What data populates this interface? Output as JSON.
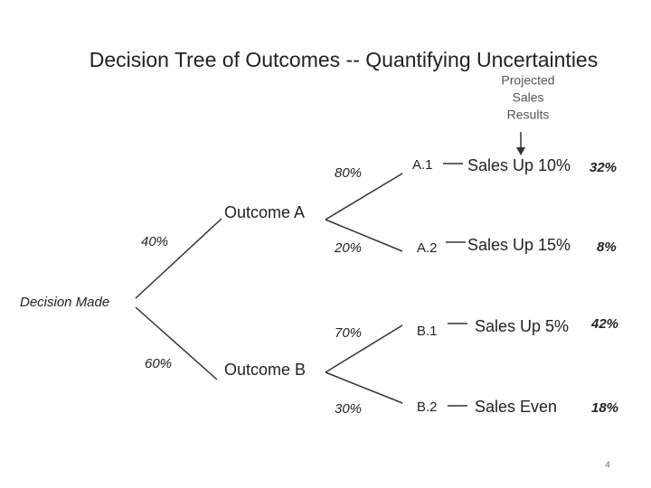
{
  "title": "Decision Tree of Outcomes -- Quantifying Uncertainties",
  "column_header": [
    "Projected",
    "Sales",
    "Results"
  ],
  "root": "Decision Made",
  "branches": [
    {
      "probability": "40%",
      "label": "Outcome A",
      "leaves": [
        {
          "probability": "80%",
          "id": "A.1",
          "result": "Sales Up 10%",
          "joint": "32%"
        },
        {
          "probability": "20%",
          "id": "A.2",
          "result": "Sales Up 15%",
          "joint": "8%"
        }
      ]
    },
    {
      "probability": "60%",
      "label": "Outcome B",
      "leaves": [
        {
          "probability": "70%",
          "id": "B.1",
          "result": "Sales Up 5%",
          "joint": "42%"
        },
        {
          "probability": "30%",
          "id": "B.2",
          "result": "Sales Even",
          "joint": "18%"
        }
      ]
    }
  ],
  "page_number": "4"
}
